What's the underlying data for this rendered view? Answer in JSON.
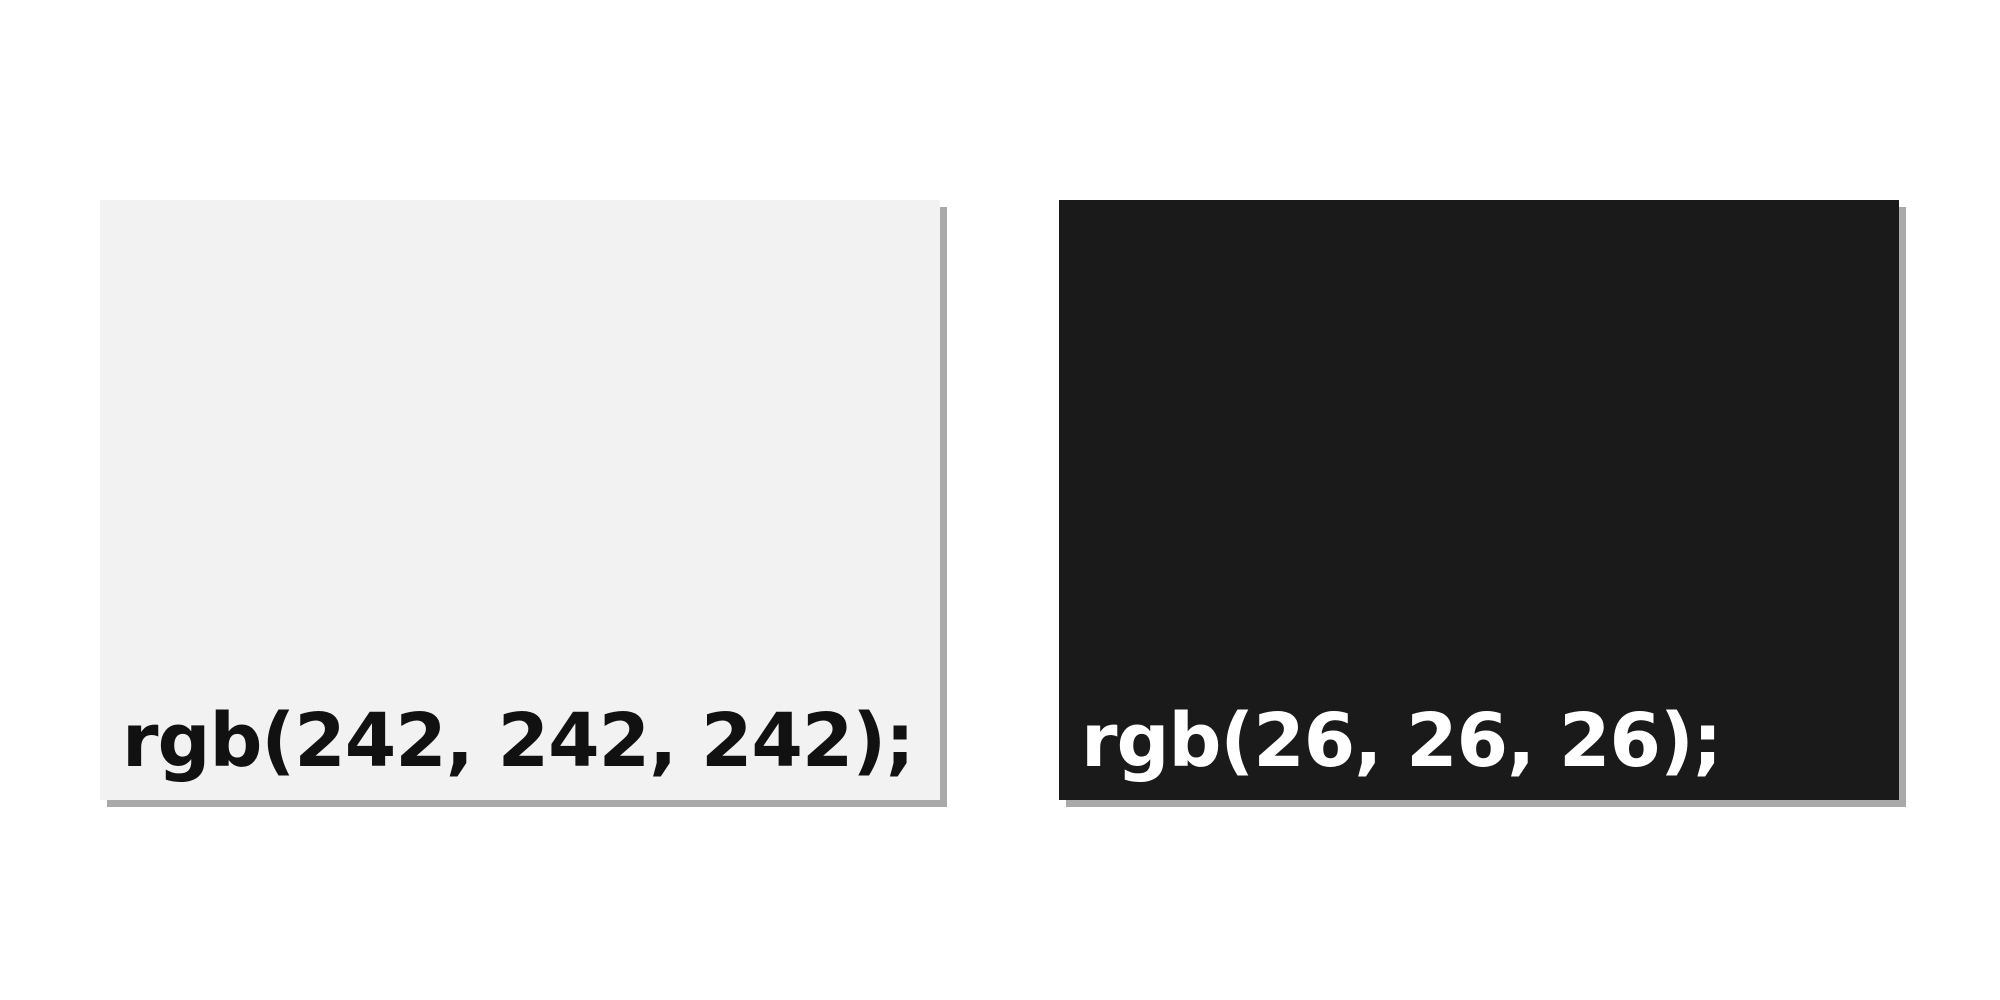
{
  "swatches": [
    {
      "label": "rgb(242, 242, 242);",
      "background": "#f2f2f2",
      "text_color": "#111111"
    },
    {
      "label": "rgb(26, 26, 26);",
      "background": "#1a1a1a",
      "text_color": "#ffffff"
    }
  ]
}
